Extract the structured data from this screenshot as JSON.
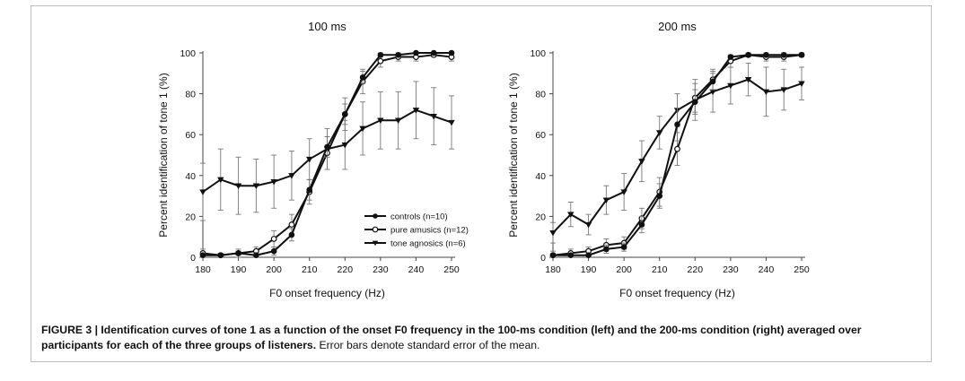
{
  "chart_data": [
    {
      "type": "line",
      "title": "100 ms",
      "xlabel": "F0 onset frequency (Hz)",
      "ylabel": "Percent identification of tone 1 (%)",
      "xlim": [
        180,
        250
      ],
      "ylim": [
        0,
        100
      ],
      "xticks": [
        180,
        190,
        200,
        210,
        220,
        230,
        240,
        250
      ],
      "yticks": [
        0,
        20,
        40,
        60,
        80,
        100
      ],
      "x": [
        180,
        185,
        190,
        195,
        200,
        205,
        210,
        215,
        220,
        225,
        230,
        235,
        240,
        245,
        250
      ],
      "legend_position": "lower-right",
      "series": [
        {
          "name": "controls (n=10)",
          "marker": "filled-circle",
          "values": [
            1,
            1,
            2,
            1,
            3,
            11,
            33,
            54,
            70,
            88,
            99,
            99,
            100,
            100,
            100
          ],
          "errors": [
            1,
            1,
            1,
            1,
            2,
            3,
            5,
            5,
            5,
            3,
            1,
            1,
            0,
            0,
            0
          ]
        },
        {
          "name": "pure amusics (n=12)",
          "marker": "open-circle",
          "values": [
            2,
            1,
            2,
            3,
            9,
            16,
            32,
            51,
            70,
            86,
            96,
            98,
            98,
            99,
            98
          ],
          "errors": [
            2,
            1,
            2,
            2,
            4,
            5,
            6,
            8,
            8,
            6,
            3,
            2,
            2,
            1,
            2
          ]
        },
        {
          "name": "tone agnosics (n=6)",
          "marker": "filled-triangle",
          "values": [
            32,
            38,
            35,
            35,
            37,
            40,
            48,
            53,
            55,
            63,
            67,
            67,
            72,
            69,
            66
          ],
          "errors": [
            14,
            15,
            14,
            13,
            13,
            12,
            10,
            10,
            12,
            13,
            14,
            14,
            14,
            14,
            13
          ]
        }
      ]
    },
    {
      "type": "line",
      "title": "200 ms",
      "xlabel": "F0 onset frequency (Hz)",
      "ylabel": "Percent identification of tone 1 (%)",
      "xlim": [
        180,
        250
      ],
      "ylim": [
        0,
        100
      ],
      "xticks": [
        180,
        190,
        200,
        210,
        220,
        230,
        240,
        250
      ],
      "yticks": [
        0,
        20,
        40,
        60,
        80,
        100
      ],
      "x": [
        180,
        185,
        190,
        195,
        200,
        205,
        210,
        215,
        220,
        225,
        230,
        235,
        240,
        245,
        250
      ],
      "series": [
        {
          "name": "controls (n=10)",
          "marker": "filled-circle",
          "values": [
            1,
            1,
            1,
            4,
            5,
            16,
            30,
            65,
            76,
            86,
            98,
            99,
            99,
            99,
            99
          ],
          "errors": [
            1,
            1,
            1,
            2,
            2,
            4,
            6,
            8,
            6,
            4,
            1,
            1,
            1,
            1,
            1
          ]
        },
        {
          "name": "pure amusics (n=12)",
          "marker": "open-circle",
          "values": [
            1,
            2,
            3,
            6,
            7,
            19,
            32,
            53,
            78,
            87,
            96,
            99,
            98,
            98,
            99
          ],
          "errors": [
            2,
            2,
            2,
            3,
            3,
            5,
            7,
            8,
            7,
            5,
            3,
            1,
            2,
            2,
            1
          ]
        },
        {
          "name": "tone agnosics (n=6)",
          "marker": "filled-triangle",
          "values": [
            12,
            21,
            16,
            28,
            32,
            47,
            61,
            72,
            77,
            81,
            84,
            87,
            81,
            82,
            85
          ],
          "errors": [
            5,
            6,
            5,
            7,
            9,
            10,
            8,
            8,
            10,
            10,
            9,
            8,
            12,
            10,
            8
          ]
        }
      ]
    }
  ],
  "caption": {
    "label": "FIGURE 3 | ",
    "bold_text": "Identification curves of tone 1 as a function of the onset F0 frequency in the 100-ms condition (left) and the 200-ms condition (right) averaged over participants for each of the three groups of listeners.",
    "normal_text": " Error bars denote standard error of the mean."
  }
}
